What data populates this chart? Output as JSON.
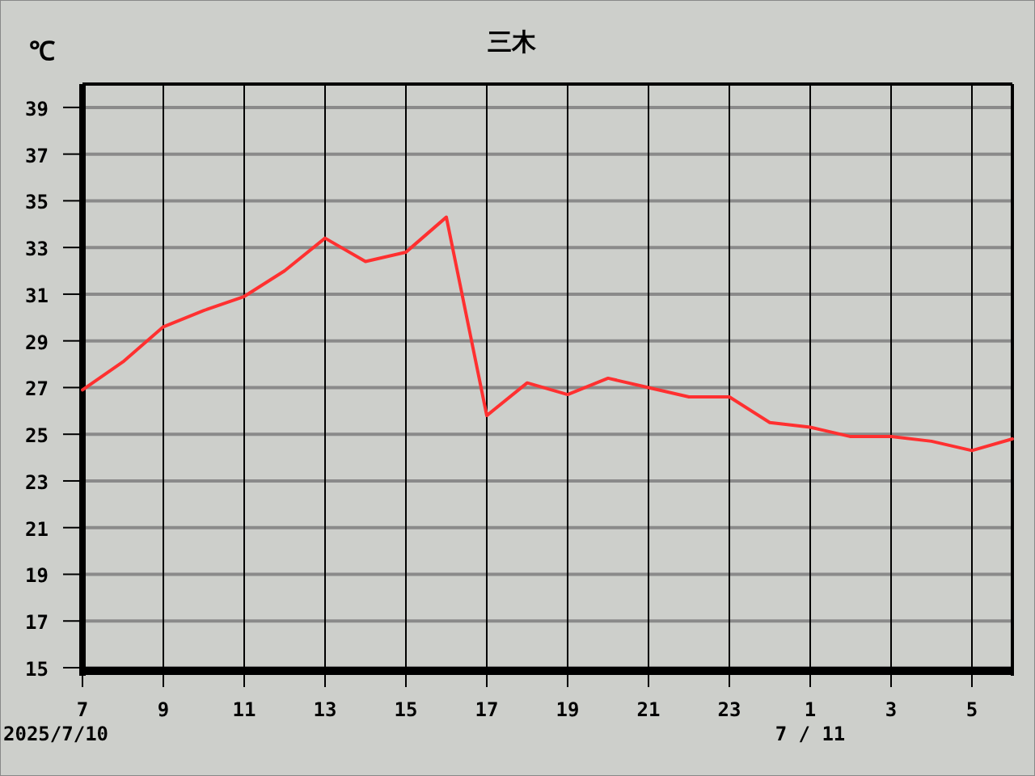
{
  "chart_data": {
    "type": "line",
    "title": "三木",
    "ylabel": "℃",
    "x": [
      "2025-07-10T07:00",
      "2025-07-10T08:00",
      "2025-07-10T09:00",
      "2025-07-10T10:00",
      "2025-07-10T11:00",
      "2025-07-10T12:00",
      "2025-07-10T13:00",
      "2025-07-10T14:00",
      "2025-07-10T15:00",
      "2025-07-10T16:00",
      "2025-07-10T17:00",
      "2025-07-10T18:00",
      "2025-07-10T19:00",
      "2025-07-10T20:00",
      "2025-07-10T21:00",
      "2025-07-10T22:00",
      "2025-07-10T23:00",
      "2025-07-11T00:00",
      "2025-07-11T01:00",
      "2025-07-11T02:00",
      "2025-07-11T03:00",
      "2025-07-11T04:00",
      "2025-07-11T05:00",
      "2025-07-11T06:00"
    ],
    "series": [
      {
        "color": "#ff3030",
        "values": [
          26.9,
          28.1,
          29.6,
          30.3,
          30.9,
          32.0,
          33.4,
          32.4,
          32.8,
          34.3,
          25.8,
          27.2,
          26.7,
          27.4,
          27.0,
          26.6,
          26.6,
          25.5,
          25.3,
          24.9,
          24.9,
          24.7,
          24.3,
          24.8
        ]
      }
    ],
    "xlim": [
      "2025-07-10T07:00",
      "2025-07-11T06:00"
    ],
    "xticks": [
      {
        "value": "2025-07-10T07:00",
        "label": "7"
      },
      {
        "value": "2025-07-10T09:00",
        "label": "9"
      },
      {
        "value": "2025-07-10T11:00",
        "label": "11"
      },
      {
        "value": "2025-07-10T13:00",
        "label": "13"
      },
      {
        "value": "2025-07-10T15:00",
        "label": "15"
      },
      {
        "value": "2025-07-10T17:00",
        "label": "17"
      },
      {
        "value": "2025-07-10T19:00",
        "label": "19"
      },
      {
        "value": "2025-07-10T21:00",
        "label": "21"
      },
      {
        "value": "2025-07-10T23:00",
        "label": "23"
      },
      {
        "value": "2025-07-11T01:00",
        "label": "1"
      },
      {
        "value": "2025-07-11T03:00",
        "label": "3"
      },
      {
        "value": "2025-07-11T05:00",
        "label": "5"
      }
    ],
    "ylim": [
      15,
      40
    ],
    "yticks": [
      15,
      17,
      19,
      21,
      23,
      25,
      27,
      29,
      31,
      33,
      35,
      37,
      39
    ],
    "grid": true,
    "marker": "none",
    "line_style": "solid",
    "annotations": [
      "2025/7/10",
      "7 / 11"
    ]
  }
}
